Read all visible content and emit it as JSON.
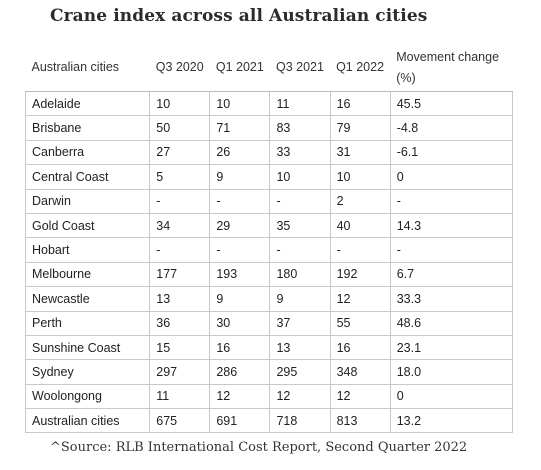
{
  "title": "Crane index across all Australian cities",
  "table": {
    "headers": [
      "Australian cities",
      "Q3 2020",
      "Q1 2021",
      "Q3 2021",
      "Q1 2022",
      "Movement change",
      "(%)"
    ],
    "rows": [
      [
        "Adelaide",
        "10",
        "10",
        "11",
        "16",
        "45.5"
      ],
      [
        "Brisbane",
        "50",
        "71",
        "83",
        "79",
        "-4.8"
      ],
      [
        "Canberra",
        "27",
        "26",
        "33",
        "31",
        "-6.1"
      ],
      [
        "Central Coast",
        "5",
        "9",
        "10",
        "10",
        "0"
      ],
      [
        "Darwin",
        "-",
        "-",
        "-",
        "2",
        "-"
      ],
      [
        "Gold Coast",
        "34",
        "29",
        "35",
        "40",
        "14.3"
      ],
      [
        "Hobart",
        "-",
        "-",
        "-",
        "-",
        "-"
      ],
      [
        "Melbourne",
        "177",
        "193",
        "180",
        "192",
        "6.7"
      ],
      [
        "Newcastle",
        "13",
        "9",
        "9",
        "12",
        "33.3"
      ],
      [
        "Perth",
        "36",
        "30",
        "37",
        "55",
        "48.6"
      ],
      [
        "Sunshine Coast",
        "15",
        "16",
        "13",
        "16",
        "23.1"
      ],
      [
        "Sydney",
        "297",
        "286",
        "295",
        "348",
        "18.0"
      ],
      [
        "Woolongong",
        "11",
        "12",
        "12",
        "12",
        "0"
      ],
      [
        "Australian cities",
        "675",
        "691",
        "718",
        "813",
        "13.2"
      ]
    ]
  },
  "source": "^Source: RLB International Cost Report, Second Quarter 2022"
}
